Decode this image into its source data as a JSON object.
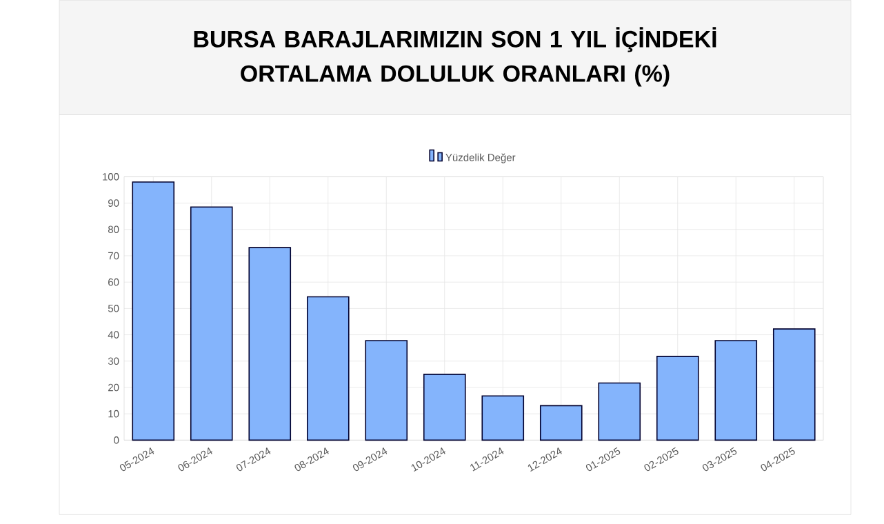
{
  "chart_data": {
    "type": "bar",
    "title": "BURSA BARAJLARIMIZIN SON 1 YIL İÇİNDEKİ ORTALAMA DOLULUK ORANLARI (%)",
    "categories": [
      "05-2024",
      "06-2024",
      "07-2024",
      "08-2024",
      "09-2024",
      "10-2024",
      "11-2024",
      "12-2024",
      "01-2025",
      "02-2025",
      "03-2025",
      "04-2025"
    ],
    "series": [
      {
        "name": "Yüzdelik Değer",
        "color": "#84b4fc",
        "values": [
          98,
          88.5,
          73.1,
          54.4,
          37.8,
          25.0,
          16.8,
          13.1,
          21.7,
          31.8,
          37.8,
          42.2
        ]
      }
    ],
    "ylim": [
      0,
      100
    ],
    "yticks": [
      0,
      10,
      20,
      30,
      40,
      50,
      60,
      70,
      80,
      90,
      100
    ],
    "grid": true,
    "legend": "top"
  }
}
